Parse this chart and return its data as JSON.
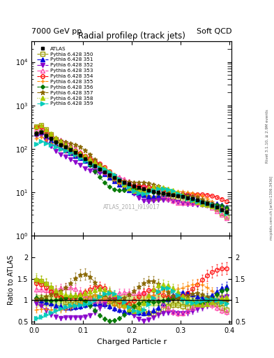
{
  "title": "Radial profileρ (track jets)",
  "top_left": "7000 GeV pp",
  "top_right": "Soft QCD",
  "watermark": "ATLAS_2011_I919017",
  "right_label_top": "Rivet 3.1.10, ≥ 2.9M events",
  "right_label_bot": "mcplots.cern.ch [arXiv:1306.3436]",
  "xlabel": "Charged Particle r",
  "ylabel_ratio": "Ratio to ATLAS",
  "x_data": [
    0.005,
    0.015,
    0.025,
    0.035,
    0.045,
    0.055,
    0.065,
    0.075,
    0.085,
    0.095,
    0.105,
    0.115,
    0.125,
    0.135,
    0.145,
    0.155,
    0.165,
    0.175,
    0.185,
    0.195,
    0.205,
    0.215,
    0.225,
    0.235,
    0.245,
    0.255,
    0.265,
    0.275,
    0.285,
    0.295,
    0.305,
    0.315,
    0.325,
    0.335,
    0.345,
    0.355,
    0.365,
    0.375,
    0.385,
    0.395
  ],
  "atlas_y": [
    220,
    240,
    200,
    170,
    145,
    125,
    110,
    95,
    82,
    70,
    58,
    48,
    40,
    34,
    29,
    25,
    22,
    19,
    17,
    15.5,
    14,
    13,
    12,
    11,
    10.5,
    10,
    9.5,
    9,
    8.7,
    8.3,
    8.0,
    7.5,
    7.0,
    6.5,
    6.0,
    5.5,
    5.0,
    4.5,
    4.0,
    3.5
  ],
  "series": [
    {
      "label": "ATLAS",
      "color": "#000000",
      "marker": "s",
      "fillstyle": "full",
      "linestyle": "none",
      "markersize": 4,
      "is_atlas": true,
      "tune": -1
    },
    {
      "label": "Pythia 6.428 350",
      "color": "#999900",
      "marker": "s",
      "fillstyle": "none",
      "linestyle": "--",
      "markersize": 4,
      "is_atlas": false,
      "tune": 350
    },
    {
      "label": "Pythia 6.428 351",
      "color": "#0000dd",
      "marker": "^",
      "fillstyle": "full",
      "linestyle": "-.",
      "markersize": 4,
      "is_atlas": false,
      "tune": 351
    },
    {
      "label": "Pythia 6.428 352",
      "color": "#8800cc",
      "marker": "v",
      "fillstyle": "full",
      "linestyle": "-.",
      "markersize": 4,
      "is_atlas": false,
      "tune": 352
    },
    {
      "label": "Pythia 6.428 353",
      "color": "#ff44aa",
      "marker": "^",
      "fillstyle": "none",
      "linestyle": "-.",
      "markersize": 4,
      "is_atlas": false,
      "tune": 353
    },
    {
      "label": "Pythia 6.428 354",
      "color": "#ff0000",
      "marker": "o",
      "fillstyle": "none",
      "linestyle": "--",
      "markersize": 4,
      "is_atlas": false,
      "tune": 354
    },
    {
      "label": "Pythia 6.428 355",
      "color": "#ff8800",
      "marker": "+",
      "fillstyle": "full",
      "linestyle": "--",
      "markersize": 5,
      "is_atlas": false,
      "tune": 355
    },
    {
      "label": "Pythia 6.428 356",
      "color": "#007700",
      "marker": "D",
      "fillstyle": "full",
      "linestyle": "--",
      "markersize": 3,
      "is_atlas": false,
      "tune": 356
    },
    {
      "label": "Pythia 6.428 357",
      "color": "#886600",
      "marker": "*",
      "fillstyle": "full",
      "linestyle": "-.",
      "markersize": 5,
      "is_atlas": false,
      "tune": 357
    },
    {
      "label": "Pythia 6.428 358",
      "color": "#aacc00",
      "marker": "^",
      "fillstyle": "full",
      "linestyle": ":",
      "markersize": 4,
      "is_atlas": false,
      "tune": 358
    },
    {
      "label": "Pythia 6.428 359",
      "color": "#00ccbb",
      "marker": ">",
      "fillstyle": "full",
      "linestyle": "-.",
      "markersize": 4,
      "is_atlas": false,
      "tune": 359
    }
  ],
  "ylim_main": [
    1.0,
    30000
  ],
  "ratio_yticks": [
    0.5,
    1.0,
    1.5,
    2.0
  ],
  "ratio_ylim": [
    0.45,
    2.5
  ],
  "band_color": "#aadd00",
  "band_alpha": 0.45,
  "band_halfwidth": 0.12,
  "tune_scales": {
    "350": 1.0,
    "351": 0.92,
    "352": 0.88,
    "353": 1.05,
    "354": 1.18,
    "355": 1.07,
    "356": 0.97,
    "357": 1.0,
    "358": 1.01,
    "359": 0.94
  }
}
